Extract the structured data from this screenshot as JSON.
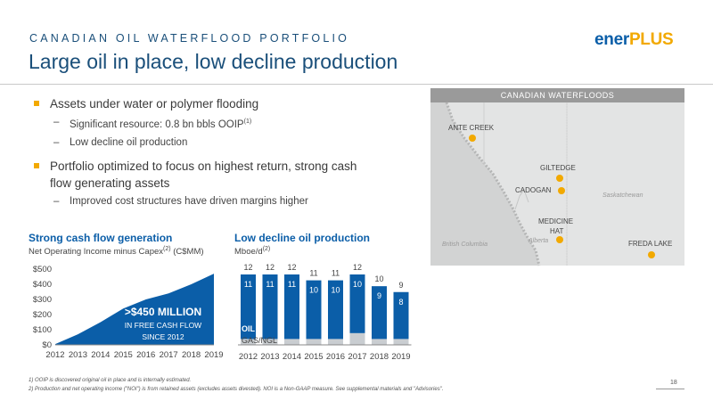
{
  "header": {
    "kicker": "CANADIAN OIL WATERFLOOD PORTFOLIO",
    "title": "Large oil in place, low decline production",
    "logo_main": "ener",
    "logo_accent": "PLUS"
  },
  "bullets": {
    "b1": "Assets under water or polymer flooding",
    "b1_sub1": "Significant resource: 0.8 bn bbls OOIP",
    "b1_sub1_sup": "(1)",
    "b1_sub2": "Low decline oil production",
    "b2_line1": "Portfolio optimized to focus on highest return, strong cash",
    "b2_line2": "flow generating assets",
    "b2_sub1": "Improved cost structures have driven margins higher",
    "dash": "–"
  },
  "map": {
    "title": "CANADIAN WATERFLOODS",
    "assets": [
      "ANTE CREEK",
      "GILTEDGE",
      "CADOGAN",
      "MEDICINE",
      "HAT",
      "FREDA LAKE"
    ],
    "regions": [
      "Saskatchewan",
      "British Columbia",
      "Alberta"
    ]
  },
  "chart_left": {
    "title": "Strong cash flow generation",
    "subtitle_a": "Net Operating Income minus Capex",
    "subtitle_sup": "(2)",
    "subtitle_b": " (C$MM)",
    "callout_1": ">$450 MILLION",
    "callout_2": "IN FREE CASH FLOW",
    "callout_3": "SINCE 2012"
  },
  "chart_right": {
    "title": "Low decline oil production",
    "subtitle_a": "Mboe/d",
    "subtitle_sup": "(2)",
    "oil_label": "OIL",
    "gas_label": "GAS/NGL"
  },
  "footnotes": {
    "f1": "1)   OOIP is discovered original oil in place and is internally estimated.",
    "f2": "2)   Production and net operating income (\"NOI\") is from retained assets (excludes assets divested). NOI is a Non-GAAP measure. See supplemental materials and \"Advisories\"."
  },
  "page_number": "18",
  "colors": {
    "navy": "#1a4f7a",
    "blue": "#0b5ea8",
    "accent": "#f2a900",
    "gas": "#c9cdd1",
    "map_bg": "#e3e4e4"
  },
  "chart_data": [
    {
      "type": "area",
      "title": "Strong cash flow generation",
      "ylabel": "Net Operating Income minus Capex (C$MM)",
      "x": [
        "2012",
        "2013",
        "2014",
        "2015",
        "2016",
        "2017",
        "2018",
        "2019"
      ],
      "y": [
        5,
        70,
        150,
        240,
        300,
        340,
        400,
        470
      ],
      "ylim": [
        0,
        500
      ],
      "yticks": [
        "$0",
        "$100",
        "$200",
        "$300",
        "$400",
        "$500"
      ],
      "ytick_values": [
        0,
        100,
        200,
        300,
        400,
        500
      ],
      "grid": false
    },
    {
      "type": "bar",
      "title": "Low decline oil production",
      "ylabel": "Mboe/d",
      "categories": [
        "2012",
        "2013",
        "2014",
        "2015",
        "2016",
        "2017",
        "2018",
        "2019"
      ],
      "series": [
        {
          "name": "OIL",
          "values": [
            11,
            11,
            11,
            10,
            10,
            10,
            9,
            8
          ]
        },
        {
          "name": "GAS/NGL",
          "values": [
            1,
            1,
            1,
            1,
            1,
            2,
            1,
            1
          ]
        }
      ],
      "totals": [
        12,
        12,
        12,
        11,
        11,
        12,
        10,
        9
      ],
      "ylim": [
        0,
        12
      ],
      "stacked": true
    }
  ]
}
